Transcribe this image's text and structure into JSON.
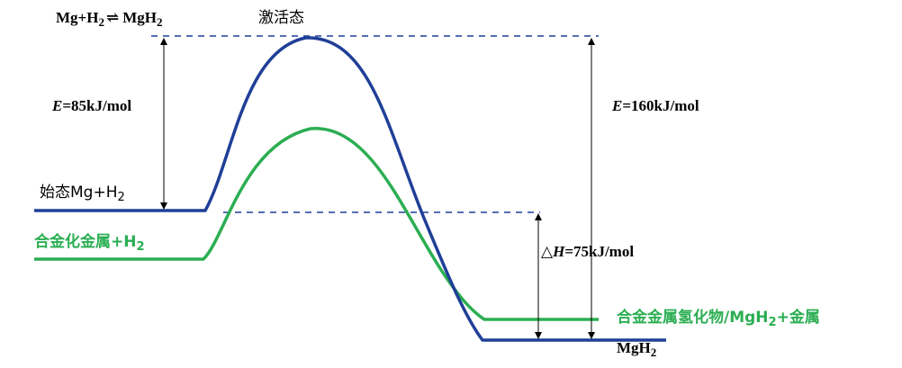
{
  "labels": {
    "equilibrium": {
      "mg": "Mg+H",
      "h_sub": "2",
      "arrow": "⇌",
      "mgh": "MgH",
      "mgh_sub": "2"
    },
    "activated_state": "激活态",
    "e_left": {
      "italic": "E",
      "rest": "=85kJ/mol"
    },
    "e_right": {
      "italic": "E",
      "rest": "=160kJ/mol"
    },
    "initial_state": {
      "text": "始态Mg+H",
      "sub": "2"
    },
    "alloy_metal": {
      "text": "合金化金属+H",
      "sub": "2"
    },
    "delta_h": {
      "symbol": "△",
      "italic": "H",
      "rest": "=75kJ/mol"
    },
    "alloy_hydride": {
      "text1": "合金金属氢化物/MgH",
      "sub": "2",
      "text2": "+金属"
    },
    "product": {
      "text": "MgH",
      "sub": "2"
    }
  },
  "colors": {
    "blue_curve": "#1f3f97",
    "green_curve": "#2bae52",
    "dashed": "#1f3f97",
    "arrow": "#000000"
  }
}
